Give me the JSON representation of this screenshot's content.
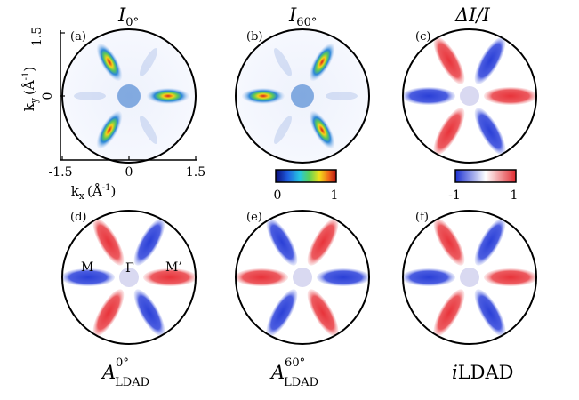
{
  "figure": {
    "panels": [
      {
        "letter": "(a)",
        "title_main": "I",
        "title_sub": "0°",
        "type": "intensity",
        "angle": 0
      },
      {
        "letter": "(b)",
        "title_main": "I",
        "title_sub": "60°",
        "type": "intensity",
        "angle": 60
      },
      {
        "letter": "(c)",
        "title_main": "ΔI/I",
        "title_sub": "",
        "type": "diverging",
        "angle": 0
      },
      {
        "letter": "(d)",
        "title_main": "A",
        "title_sub": "LDAD",
        "title_sup": "0°",
        "type": "diverging",
        "angle": 0
      },
      {
        "letter": "(e)",
        "title_main": "A",
        "title_sub": "LDAD",
        "title_sup": "60°",
        "type": "diverging-inv",
        "angle": 0
      },
      {
        "letter": "(f)",
        "title_main": "i",
        "title_rest": "LDAD",
        "type": "diverging",
        "angle": 0
      }
    ],
    "axes": {
      "y_label": "ky (Å-1)",
      "y_label_main": "k",
      "y_label_sub": "y",
      "y_label_unit": "(Å",
      "y_label_exp": "-1",
      "x_label_main": "k",
      "x_label_sub": "x",
      "x_label_unit": "(Å",
      "x_label_exp": "-1",
      "close_paren": ")",
      "y_ticks": [
        "1.5",
        "0",
        "-1.5"
      ],
      "x_ticks": [
        "-1.5",
        "0",
        "1.5"
      ]
    },
    "colorbars": [
      {
        "name": "intensity",
        "min_label": "0",
        "max_label": "1"
      },
      {
        "name": "diverging",
        "min_label": "-1",
        "max_label": "1"
      }
    ],
    "symmetry_labels": {
      "M": "M",
      "Gamma": "Γ",
      "M_prime": "M’"
    },
    "colors": {
      "red": "#e8333a",
      "blue": "#2a3fd6",
      "intensity_low": "#dfe8fb",
      "intensity_high": "#c0201a"
    }
  }
}
